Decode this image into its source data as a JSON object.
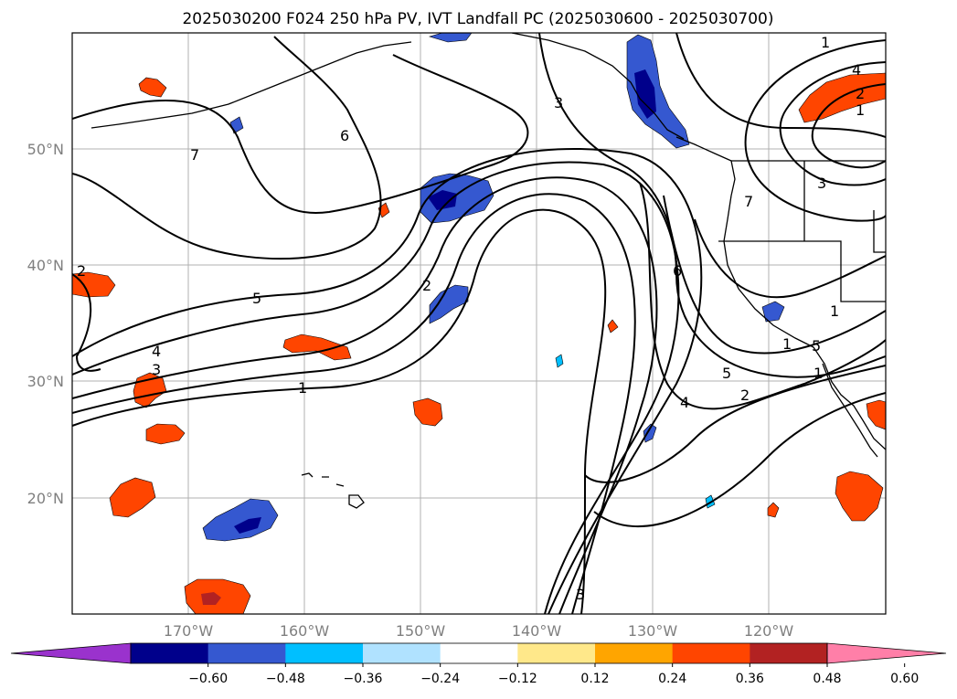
{
  "title": "2025030200 F024 250 hPa PV, IVT Landfall PC (2025030600 - 2025030700)",
  "longitude_ticks": [
    "170°W",
    "160°W",
    "150°W",
    "140°W",
    "130°W",
    "120°W"
  ],
  "latitude_ticks": [
    "50°N",
    "40°N",
    "30°N",
    "20°N"
  ],
  "colorbar": {
    "tick_labels": [
      "−0.60",
      "−0.48",
      "−0.36",
      "−0.24",
      "−0.12",
      "0.12",
      "0.24",
      "0.36",
      "0.48",
      "0.60"
    ],
    "colors": [
      "#9a32cd",
      "#00008b",
      "#3558d0",
      "#00bfff",
      "#b0e2ff",
      "#ffffff",
      "#ffe88a",
      "#ffa500",
      "#ff4500",
      "#b22222",
      "#ff7fa8"
    ]
  },
  "contour_labels": [
    "7",
    "6",
    "3",
    "1",
    "4",
    "2",
    "1",
    "3",
    "5",
    "2",
    "1",
    "4",
    "3",
    "5",
    "4",
    "2",
    "6",
    "7",
    "5",
    "1",
    "1",
    "3",
    "2",
    "1"
  ]
}
